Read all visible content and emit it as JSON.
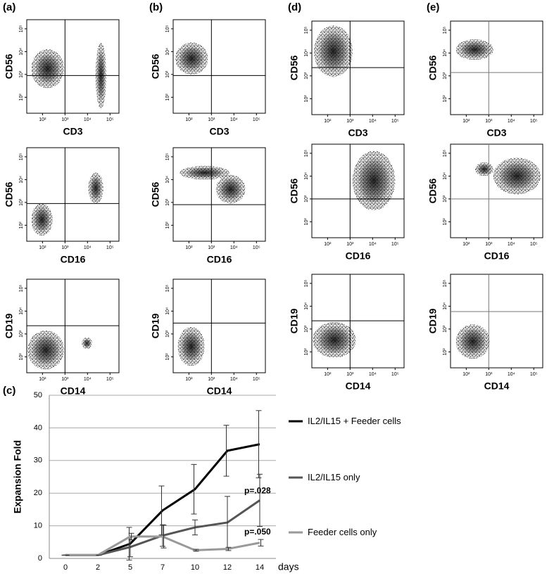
{
  "chart_data": [
    {
      "type": "scatter",
      "panel_label": "(a)",
      "xlabel": "CD3",
      "ylabel": "CD56",
      "log_scale": true,
      "xlim": [
        20,
        250000
      ],
      "ylim": [
        20,
        250000
      ],
      "xticks": [
        {
          "value": 100,
          "label": "10²"
        },
        {
          "value": 1000,
          "label": "10³"
        },
        {
          "value": 10000,
          "label": "10⁴"
        },
        {
          "value": 100000,
          "label": "10⁵"
        }
      ],
      "yticks": [
        {
          "value": 100,
          "label": "10²"
        },
        {
          "value": 1000,
          "label": "10³"
        },
        {
          "value": 10000,
          "label": "10⁴"
        },
        {
          "value": 100000,
          "label": "10⁵"
        }
      ],
      "gate": {
        "x": 1000,
        "y": 900
      },
      "populations": [
        {
          "x": [
            23000,
            68000
          ],
          "y": [
            32,
            25000
          ]
        },
        {
          "x": [
            32,
            900
          ],
          "y": [
            250,
            12600
          ]
        }
      ]
    },
    {
      "type": "scatter",
      "xlabel": "CD16",
      "ylabel": "CD56",
      "log_scale": true,
      "xlim": [
        20,
        250000
      ],
      "ylim": [
        20,
        250000
      ],
      "xticks": [
        {
          "value": 100,
          "label": "10²"
        },
        {
          "value": 1000,
          "label": "10³"
        },
        {
          "value": 10000,
          "label": "10⁴"
        },
        {
          "value": 100000,
          "label": "10⁵"
        }
      ],
      "yticks": [
        {
          "value": 100,
          "label": "10²"
        },
        {
          "value": 1000,
          "label": "10³"
        },
        {
          "value": 10000,
          "label": "10⁴"
        },
        {
          "value": 100000,
          "label": "10⁵"
        }
      ],
      "gate": {
        "x": 1000,
        "y": 900
      },
      "populations": [
        {
          "x": [
            32,
            280
          ],
          "y": [
            35,
            900
          ]
        },
        {
          "x": [
            11000,
            50000
          ],
          "y": [
            900,
            20000
          ]
        }
      ]
    },
    {
      "type": "scatter",
      "xlabel": "CD14",
      "ylabel": "CD19",
      "log_scale": true,
      "xlim": [
        20,
        250000
      ],
      "ylim": [
        20,
        250000
      ],
      "xticks": [
        {
          "value": 100,
          "label": "10²"
        },
        {
          "value": 1000,
          "label": "10³"
        },
        {
          "value": 10000,
          "label": "10⁴"
        },
        {
          "value": 100000,
          "label": "10⁵"
        }
      ],
      "yticks": [
        {
          "value": 100,
          "label": "10²"
        },
        {
          "value": 1000,
          "label": "10³"
        },
        {
          "value": 10000,
          "label": "10⁴"
        },
        {
          "value": 100000,
          "label": "10⁵"
        }
      ],
      "gate": {
        "x": 1000,
        "y": 2300
      },
      "populations": [
        {
          "x": [
            22,
            900
          ],
          "y": [
            28,
            1400
          ]
        },
        {
          "x": [
            5600,
            16000
          ],
          "y": [
            220,
            700
          ]
        }
      ]
    },
    {
      "type": "scatter",
      "panel_label": "(b)",
      "xlabel": "CD3",
      "ylabel": "CD56",
      "log_scale": true,
      "xlim": [
        20,
        250000
      ],
      "ylim": [
        20,
        250000
      ],
      "xticks": [
        {
          "value": 100,
          "label": "10²"
        },
        {
          "value": 1000,
          "label": "10³"
        },
        {
          "value": 10000,
          "label": "10⁴"
        },
        {
          "value": 100000,
          "label": "10⁵"
        }
      ],
      "yticks": [
        {
          "value": 100,
          "label": "10²"
        },
        {
          "value": 1000,
          "label": "10³"
        },
        {
          "value": 10000,
          "label": "10⁴"
        },
        {
          "value": 100000,
          "label": "10⁵"
        }
      ],
      "gate": {
        "x": 1000,
        "y": 900
      },
      "populations": [
        {
          "x": [
            25,
            700
          ],
          "y": [
            1000,
            25000
          ]
        }
      ]
    },
    {
      "type": "scatter",
      "xlabel": "CD16",
      "ylabel": "CD56",
      "log_scale": true,
      "xlim": [
        20,
        250000
      ],
      "ylim": [
        20,
        250000
      ],
      "xticks": [
        {
          "value": 100,
          "label": "10²"
        },
        {
          "value": 1000,
          "label": "10³"
        },
        {
          "value": 10000,
          "label": "10⁴"
        },
        {
          "value": 100000,
          "label": "10⁵"
        }
      ],
      "yticks": [
        {
          "value": 100,
          "label": "10²"
        },
        {
          "value": 1000,
          "label": "10³"
        },
        {
          "value": 10000,
          "label": "10⁴"
        },
        {
          "value": 100000,
          "label": "10⁵"
        }
      ],
      "gate": {
        "x": 1000,
        "y": 800
      },
      "populations": [
        {
          "x": [
            40,
            6300
          ],
          "y": [
            10000,
            40000
          ]
        },
        {
          "x": [
            1600,
            32000
          ],
          "y": [
            900,
            16000
          ]
        }
      ]
    },
    {
      "type": "scatter",
      "xlabel": "CD14",
      "ylabel": "CD19",
      "log_scale": true,
      "xlim": [
        20,
        250000
      ],
      "ylim": [
        20,
        250000
      ],
      "xticks": [
        {
          "value": 100,
          "label": "10²"
        },
        {
          "value": 1000,
          "label": "10³"
        },
        {
          "value": 10000,
          "label": "10⁴"
        },
        {
          "value": 100000,
          "label": "10⁵"
        }
      ],
      "yticks": [
        {
          "value": 100,
          "label": "10²"
        },
        {
          "value": 1000,
          "label": "10³"
        },
        {
          "value": 10000,
          "label": "10⁴"
        },
        {
          "value": 100000,
          "label": "10⁵"
        }
      ],
      "gate": {
        "x": 1000,
        "y": 3000
      },
      "populations": [
        {
          "x": [
            32,
            500
          ],
          "y": [
            40,
            2000
          ]
        }
      ]
    },
    {
      "type": "scatter",
      "panel_label": "(d)",
      "xlabel": "CD3",
      "ylabel": "CD56",
      "log_scale": true,
      "xlim": [
        20,
        250000
      ],
      "ylim": [
        20,
        250000
      ],
      "xticks": [
        {
          "value": 100,
          "label": "10²"
        },
        {
          "value": 1000,
          "label": "10³"
        },
        {
          "value": 10000,
          "label": "10⁴"
        },
        {
          "value": 100000,
          "label": "10⁵"
        }
      ],
      "yticks": [
        {
          "value": 100,
          "label": "10²"
        },
        {
          "value": 1000,
          "label": "10³"
        },
        {
          "value": 10000,
          "label": "10⁴"
        },
        {
          "value": 100000,
          "label": "10⁵"
        }
      ],
      "gate": {
        "x": 1000,
        "y": 2300
      },
      "populations": [
        {
          "x": [
            25,
            1300
          ],
          "y": [
            900,
            158000
          ]
        }
      ]
    },
    {
      "type": "scatter",
      "xlabel": "CD16",
      "ylabel": "CD56",
      "log_scale": true,
      "xlim": [
        20,
        250000
      ],
      "ylim": [
        20,
        250000
      ],
      "xticks": [
        {
          "value": 100,
          "label": "10²"
        },
        {
          "value": 1000,
          "label": "10³"
        },
        {
          "value": 10000,
          "label": "10⁴"
        },
        {
          "value": 100000,
          "label": "10⁵"
        }
      ],
      "yticks": [
        {
          "value": 100,
          "label": "10²"
        },
        {
          "value": 1000,
          "label": "10³"
        },
        {
          "value": 10000,
          "label": "10⁴"
        },
        {
          "value": 100000,
          "label": "10⁵"
        }
      ],
      "gate": {
        "x": 1000,
        "y": 1000
      },
      "populations": [
        {
          "x": [
            1300,
            100000
          ],
          "y": [
            320,
            126000
          ]
        }
      ]
    },
    {
      "type": "scatter",
      "xlabel": "CD14",
      "ylabel": "CD19",
      "log_scale": true,
      "xlim": [
        20,
        250000
      ],
      "ylim": [
        20,
        250000
      ],
      "xticks": [
        {
          "value": 100,
          "label": "10²"
        },
        {
          "value": 1000,
          "label": "10³"
        },
        {
          "value": 10000,
          "label": "10⁴"
        },
        {
          "value": 100000,
          "label": "10⁵"
        }
      ],
      "yticks": [
        {
          "value": 100,
          "label": "10²"
        },
        {
          "value": 1000,
          "label": "10³"
        },
        {
          "value": 10000,
          "label": "10⁴"
        },
        {
          "value": 100000,
          "label": "10⁵"
        }
      ],
      "gate": {
        "x": 1000,
        "y": 2300
      },
      "populations": [
        {
          "x": [
            22,
            1800
          ],
          "y": [
            56,
            2000
          ]
        }
      ]
    },
    {
      "type": "scatter",
      "panel_label": "(e)",
      "xlabel": "CD3",
      "ylabel": "CD56",
      "log_scale": true,
      "xlim": [
        20,
        250000
      ],
      "ylim": [
        20,
        250000
      ],
      "xticks": [
        {
          "value": 100,
          "label": "10²"
        },
        {
          "value": 1000,
          "label": "10³"
        },
        {
          "value": 10000,
          "label": "10⁴"
        },
        {
          "value": 100000,
          "label": "10⁵"
        }
      ],
      "yticks": [
        {
          "value": 100,
          "label": "10²"
        },
        {
          "value": 1000,
          "label": "10³"
        },
        {
          "value": 10000,
          "label": "10⁴"
        },
        {
          "value": 100000,
          "label": "10⁵"
        }
      ],
      "gate": {
        "x": 1000,
        "y": 1400
      },
      "populations": [
        {
          "x": [
            35,
            1600
          ],
          "y": [
            5000,
            40000
          ]
        }
      ]
    },
    {
      "type": "scatter",
      "xlabel": "CD16",
      "ylabel": "CD56",
      "log_scale": true,
      "xlim": [
        20,
        250000
      ],
      "ylim": [
        20,
        250000
      ],
      "xticks": [
        {
          "value": 100,
          "label": "10²"
        },
        {
          "value": 1000,
          "label": "10³"
        },
        {
          "value": 10000,
          "label": "10⁴"
        },
        {
          "value": 100000,
          "label": "10⁵"
        }
      ],
      "yticks": [
        {
          "value": 100,
          "label": "10²"
        },
        {
          "value": 1000,
          "label": "10³"
        },
        {
          "value": 10000,
          "label": "10⁴"
        },
        {
          "value": 100000,
          "label": "10⁵"
        }
      ],
      "gate": {
        "x": 1000,
        "y": 1000
      },
      "populations": [
        {
          "x": [
            250,
            1600
          ],
          "y": [
            10000,
            40000
          ]
        },
        {
          "x": [
            1600,
            200000
          ],
          "y": [
            1600,
            63000
          ]
        }
      ]
    },
    {
      "type": "scatter",
      "xlabel": "CD14",
      "ylabel": "CD19",
      "log_scale": true,
      "xlim": [
        20,
        250000
      ],
      "ylim": [
        20,
        250000
      ],
      "xticks": [
        {
          "value": 100,
          "label": "10²"
        },
        {
          "value": 1000,
          "label": "10³"
        },
        {
          "value": 10000,
          "label": "10⁴"
        },
        {
          "value": 100000,
          "label": "10⁵"
        }
      ],
      "yticks": [
        {
          "value": 100,
          "label": "10²"
        },
        {
          "value": 1000,
          "label": "10³"
        },
        {
          "value": 10000,
          "label": "10⁴"
        },
        {
          "value": 100000,
          "label": "10⁵"
        }
      ],
      "gate": {
        "x": 1000,
        "y": 5800
      },
      "populations": [
        {
          "x": [
            35,
            1100
          ],
          "y": [
            50,
            1600
          ]
        }
      ]
    },
    {
      "type": "line",
      "panel_label": "(c)",
      "ylabel": "Expansion Fold",
      "xlabel": "days",
      "categories": [
        "0",
        "2",
        "5",
        "7",
        "10",
        "12",
        "14"
      ],
      "ylim": [
        0,
        50
      ],
      "yticks": [
        0,
        10,
        20,
        30,
        40,
        50
      ],
      "grid": true,
      "series": [
        {
          "name": "IL2/IL15 + Feeder cells",
          "color": "#000000",
          "values": [
            1,
            1,
            4.5,
            14.7,
            21.2,
            33,
            35
          ],
          "errors": [
            0,
            0,
            5,
            7.5,
            7.6,
            7.8,
            10.3
          ]
        },
        {
          "name": "IL2/IL15 only",
          "color": "#555555",
          "values": [
            1,
            1,
            3.5,
            7,
            9.5,
            11,
            17.8
          ],
          "errors": [
            0,
            0,
            3,
            3.3,
            2.3,
            8,
            8
          ]
        },
        {
          "name": "Feeder cells only",
          "color": "#999999",
          "values": [
            1,
            1,
            6.7,
            6.7,
            2.5,
            2.9,
            4.8
          ],
          "errors": [
            0,
            0,
            1,
            3.5,
            0.3,
            0.5,
            1
          ]
        }
      ],
      "annotations": [
        "p=.028",
        "p=.050"
      ]
    }
  ]
}
